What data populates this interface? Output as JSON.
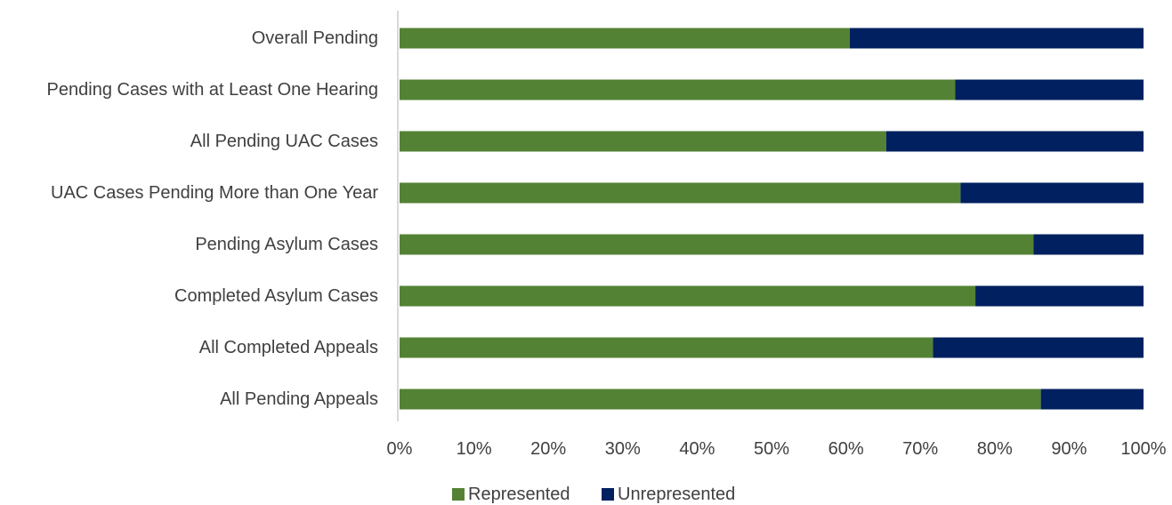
{
  "chart_data": {
    "type": "bar",
    "orientation": "horizontal",
    "stacked": true,
    "title": "",
    "xlabel": "",
    "ylabel": "",
    "categories": [
      "Overall Pending",
      "Pending Cases with at Least One Hearing",
      "All Pending UAC Cases",
      "UAC Cases Pending More than One Year",
      "Pending Asylum Cases",
      "Completed Asylum Cases",
      "All Completed Appeals",
      "All Pending Appeals"
    ],
    "series": [
      {
        "name": "Represented",
        "color": "#548235",
        "values": [
          60.5,
          74.7,
          65.4,
          75.4,
          85.2,
          77.4,
          71.7,
          86.2
        ]
      },
      {
        "name": "Unrepresented",
        "color": "#002060",
        "values": [
          39.5,
          25.3,
          34.6,
          24.6,
          14.8,
          22.6,
          28.3,
          13.8
        ]
      }
    ],
    "xlim": [
      0,
      100
    ],
    "x_ticks": [
      "0%",
      "10%",
      "20%",
      "30%",
      "40%",
      "50%",
      "60%",
      "70%",
      "80%",
      "90%",
      "100%"
    ],
    "grid": false,
    "legend_position": "bottom"
  }
}
